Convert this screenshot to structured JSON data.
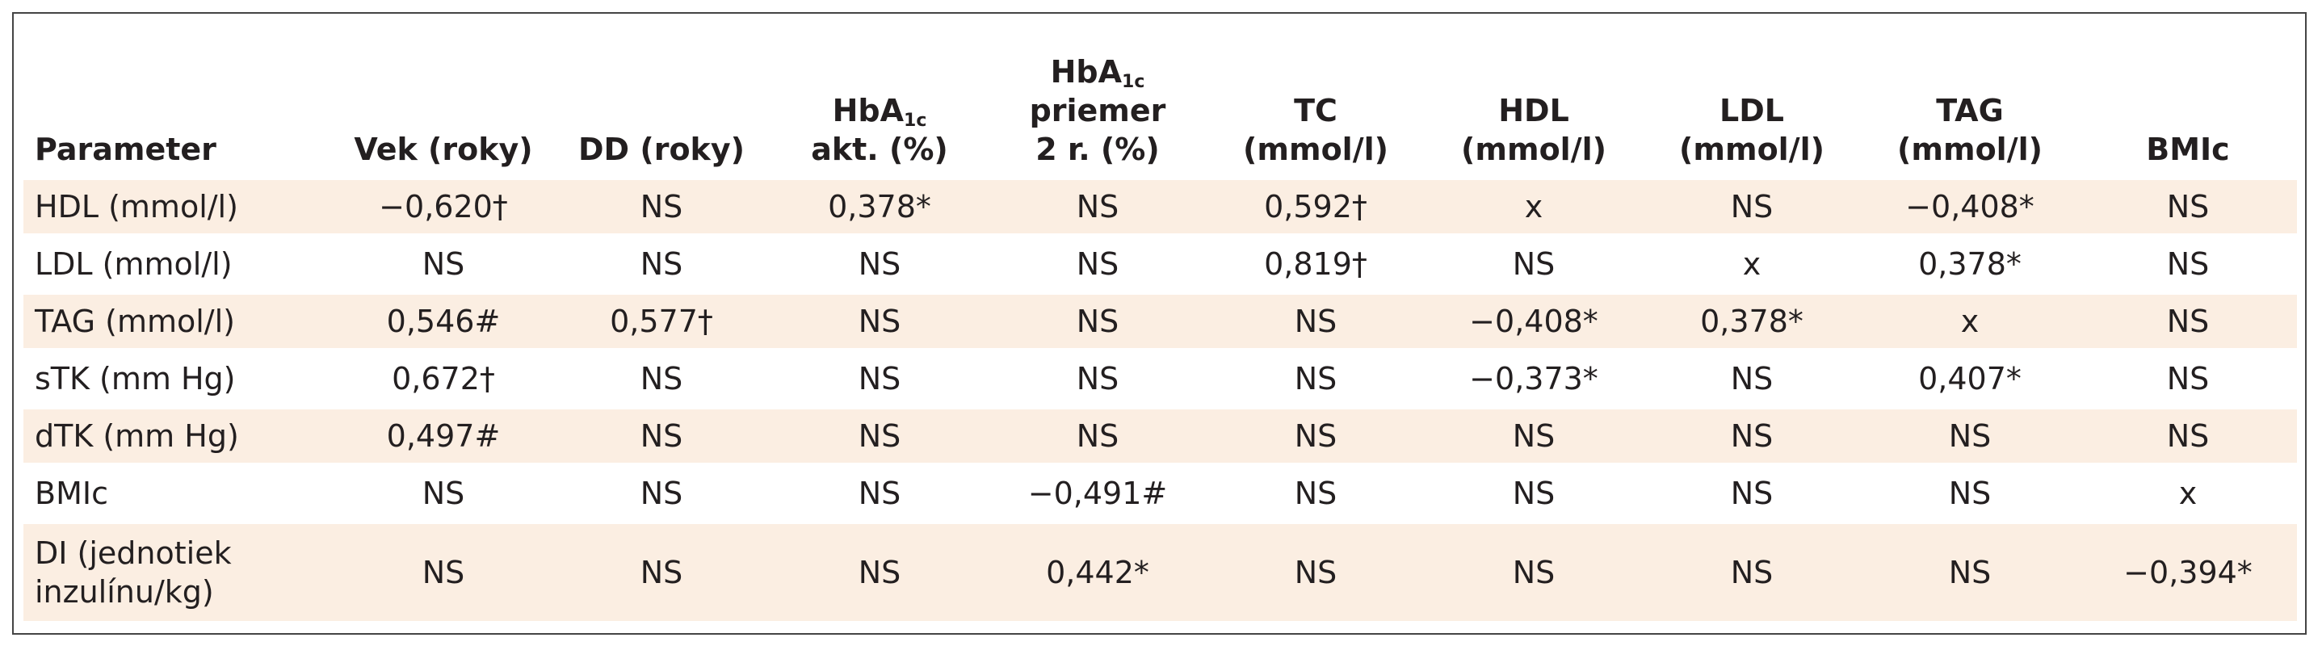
{
  "table": {
    "header": [
      {
        "lines": [
          "Parameter"
        ]
      },
      {
        "lines": [
          "Vek (roky)"
        ]
      },
      {
        "lines": [
          "DD (roky)"
        ]
      },
      {
        "base": "HbA",
        "sub": "1c",
        "lines": [
          "akt. (%)"
        ]
      },
      {
        "base": "HbA",
        "sub": "1c",
        "lines": [
          "priemer",
          "2 r. (%)"
        ]
      },
      {
        "lines": [
          "TC",
          "(mmol/l)"
        ]
      },
      {
        "lines": [
          "HDL",
          "(mmol/l)"
        ]
      },
      {
        "lines": [
          "LDL",
          "(mmol/l)"
        ]
      },
      {
        "lines": [
          "TAG",
          "(mmol/l)"
        ]
      },
      {
        "lines": [
          "BMIc"
        ]
      }
    ],
    "rows": [
      [
        "HDL (mmol/l)",
        "−0,620†",
        "NS",
        "0,378*",
        "NS",
        "0,592†",
        "x",
        "NS",
        "−0,408*",
        "NS"
      ],
      [
        "LDL (mmol/l)",
        "NS",
        "NS",
        "NS",
        "NS",
        "0,819†",
        "NS",
        "x",
        "0,378*",
        "NS"
      ],
      [
        "TAG (mmol/l)",
        "0,546#",
        "0,577†",
        "NS",
        "NS",
        "NS",
        "−0,408*",
        "0,378*",
        "x",
        "NS"
      ],
      [
        "sTK (mm Hg)",
        "0,672†",
        "NS",
        "NS",
        "NS",
        "NS",
        "−0,373*",
        "NS",
        "0,407*",
        "NS"
      ],
      [
        "dTK (mm Hg)",
        "0,497#",
        "NS",
        "NS",
        "NS",
        "NS",
        "NS",
        "NS",
        "NS",
        "NS"
      ],
      [
        "BMIc",
        "NS",
        "NS",
        "NS",
        "−0,491#",
        "NS",
        "NS",
        "NS",
        "NS",
        "x"
      ],
      [
        "DI (jednotiek inzulínu/kg)",
        "NS",
        "NS",
        "NS",
        "0,442*",
        "NS",
        "NS",
        "NS",
        "NS",
        "−0,394*"
      ]
    ]
  }
}
